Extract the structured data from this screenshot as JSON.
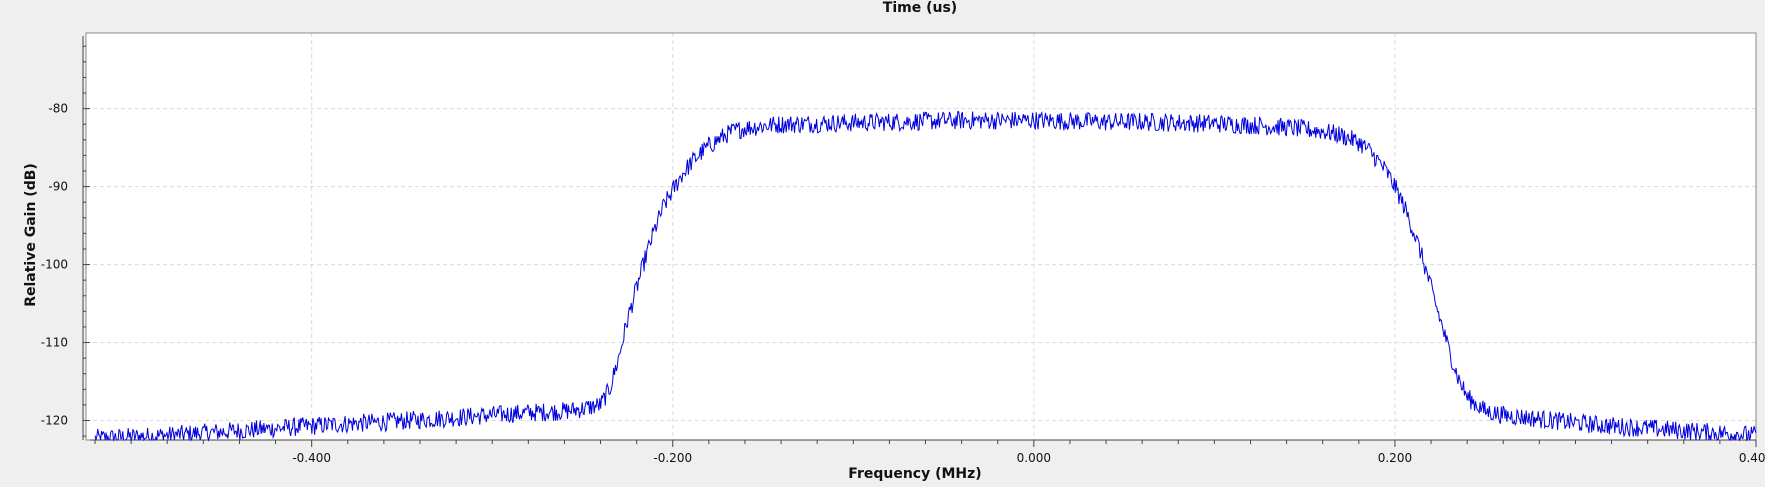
{
  "chart_data": {
    "type": "line",
    "title": "Time (us)",
    "xlabel": "Frequency (MHz)",
    "ylabel": "Relative Gain (dB)",
    "xlim": [
      -0.525,
      0.4
    ],
    "ylim": [
      -122.5,
      -70.3
    ],
    "xticks": [
      -0.4,
      -0.2,
      0.0,
      0.2,
      0.4
    ],
    "xtick_labels": [
      "-0.400",
      "-0.200",
      "0.000",
      "0.200",
      "0.400"
    ],
    "yticks": [
      -80,
      -90,
      -100,
      -110,
      -120
    ],
    "ytick_labels": [
      "-80",
      "-90",
      "-100",
      "-110",
      "-120"
    ],
    "grid": true,
    "line_color": "#0000dd",
    "series": [
      {
        "x": [
          -0.52,
          -0.5,
          -0.48,
          -0.46,
          -0.44,
          -0.42,
          -0.4,
          -0.38,
          -0.36,
          -0.34,
          -0.32,
          -0.3,
          -0.28,
          -0.26,
          -0.25,
          -0.24,
          -0.235,
          -0.23,
          -0.225,
          -0.22,
          -0.215,
          -0.21,
          -0.205,
          -0.2,
          -0.195,
          -0.19,
          -0.185,
          -0.18,
          -0.175,
          -0.17,
          -0.165,
          -0.16,
          -0.15,
          -0.14,
          -0.12,
          -0.1,
          -0.08,
          -0.06,
          -0.04,
          -0.02,
          0.0,
          0.02,
          0.04,
          0.06,
          0.08,
          0.1,
          0.12,
          0.14,
          0.16,
          0.17,
          0.18,
          0.185,
          0.19,
          0.195,
          0.2,
          0.205,
          0.21,
          0.215,
          0.22,
          0.225,
          0.23,
          0.235,
          0.24,
          0.25,
          0.26,
          0.28,
          0.3,
          0.32,
          0.34,
          0.36,
          0.38,
          0.4
        ],
        "y": [
          -122.3,
          -122.1,
          -121.9,
          -121.6,
          -121.3,
          -121.0,
          -120.7,
          -120.4,
          -120.2,
          -119.9,
          -119.6,
          -119.3,
          -119.0,
          -118.8,
          -118.5,
          -118.0,
          -116.0,
          -112.0,
          -107.0,
          -103.0,
          -99.0,
          -95.5,
          -92.5,
          -90.5,
          -88.5,
          -87.0,
          -85.8,
          -84.8,
          -84.0,
          -83.3,
          -82.8,
          -82.5,
          -82.2,
          -82.0,
          -81.9,
          -81.8,
          -81.7,
          -81.6,
          -81.5,
          -81.5,
          -81.5,
          -81.6,
          -81.7,
          -81.7,
          -81.8,
          -81.9,
          -82.1,
          -82.4,
          -82.9,
          -83.4,
          -84.3,
          -85.2,
          -86.5,
          -88.0,
          -90.0,
          -92.5,
          -95.5,
          -99.0,
          -103.0,
          -107.0,
          -111.0,
          -114.5,
          -117.0,
          -118.8,
          -119.3,
          -119.8,
          -120.3,
          -120.7,
          -121.0,
          -121.3,
          -121.6,
          -121.9
        ]
      }
    ]
  }
}
